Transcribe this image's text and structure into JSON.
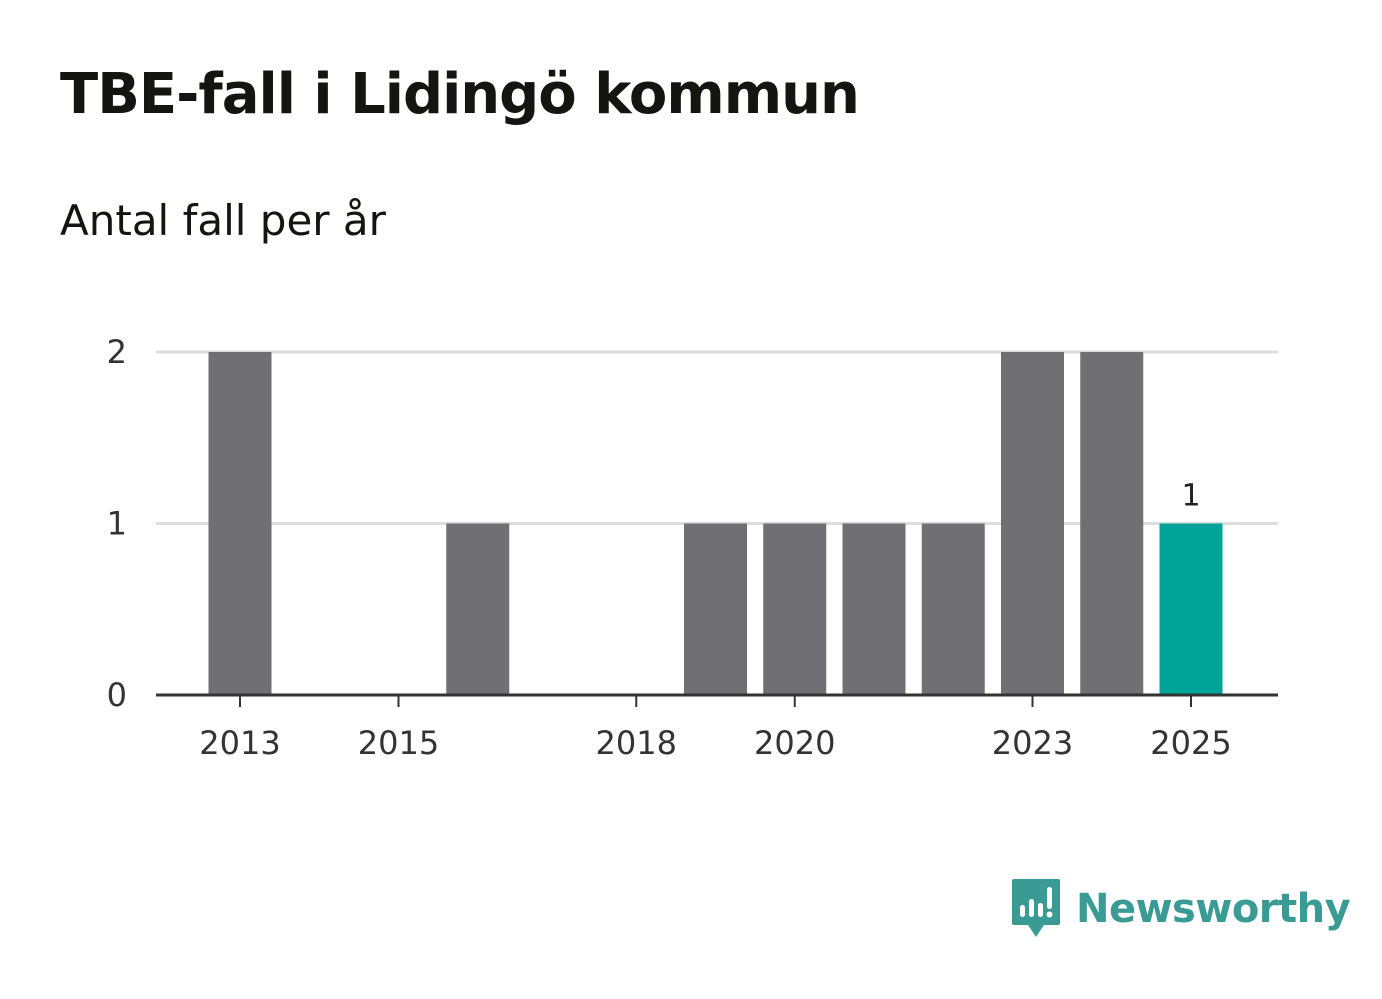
{
  "title": "TBE-fall i Lidingö kommun",
  "subtitle": "Antal fall per år",
  "brand": {
    "name": "Newsworthy",
    "color": "#3a9b94",
    "icon": "bar-chart-speech-bubble-icon"
  },
  "colors": {
    "bar_default": "#707074",
    "bar_highlight": "#00a398",
    "grid": "#dddddd",
    "axis": "#333333"
  },
  "chart_data": {
    "type": "bar",
    "title": "TBE-fall i Lidingö kommun",
    "subtitle": "Antal fall per år",
    "xlabel": "",
    "ylabel": "",
    "categories": [
      2013,
      2014,
      2015,
      2016,
      2017,
      2018,
      2019,
      2020,
      2021,
      2022,
      2023,
      2024,
      2025
    ],
    "values": [
      2,
      0,
      0,
      1,
      0,
      0,
      1,
      1,
      1,
      1,
      2,
      2,
      1
    ],
    "highlight_index": 12,
    "data_labels": [
      {
        "index": 12,
        "text": "1"
      }
    ],
    "x_tick_labels": [
      "2013",
      "2015",
      "2018",
      "2020",
      "2023",
      "2025"
    ],
    "y_ticks": [
      0,
      1,
      2
    ],
    "ylim": [
      0,
      2
    ],
    "grid": true,
    "legend": "none"
  }
}
